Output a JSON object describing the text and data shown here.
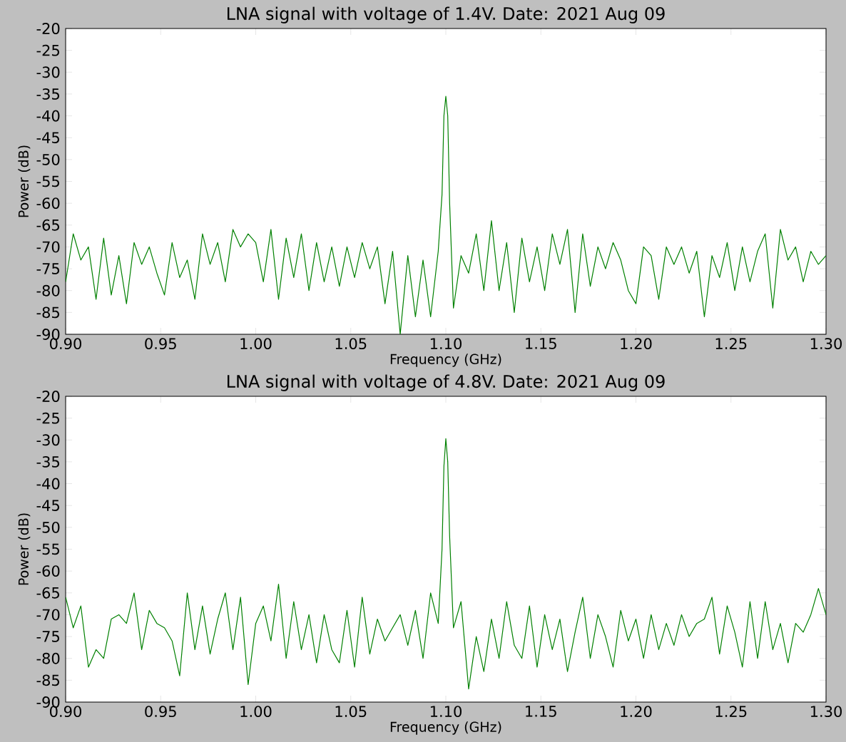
{
  "chart_data": [
    {
      "type": "line",
      "title": "LNA signal with voltage of 1.4V. Date: 2021 Aug 09",
      "xlabel": "Frequency (GHz)",
      "ylabel": "Power (dB)",
      "x": [
        0.9,
        0.904,
        0.908,
        0.912,
        0.916,
        0.92,
        0.924,
        0.928,
        0.932,
        0.936,
        0.94,
        0.944,
        0.948,
        0.952,
        0.956,
        0.96,
        0.964,
        0.968,
        0.972,
        0.976,
        0.98,
        0.984,
        0.988,
        0.992,
        0.996,
        1.0,
        1.004,
        1.008,
        1.012,
        1.016,
        1.02,
        1.024,
        1.028,
        1.032,
        1.036,
        1.04,
        1.044,
        1.048,
        1.052,
        1.056,
        1.06,
        1.064,
        1.068,
        1.072,
        1.076,
        1.08,
        1.084,
        1.088,
        1.092,
        1.096,
        1.098,
        1.099,
        1.1,
        1.101,
        1.102,
        1.104,
        1.108,
        1.112,
        1.116,
        1.12,
        1.124,
        1.128,
        1.132,
        1.136,
        1.14,
        1.144,
        1.148,
        1.152,
        1.156,
        1.16,
        1.164,
        1.168,
        1.172,
        1.176,
        1.18,
        1.184,
        1.188,
        1.192,
        1.196,
        1.2,
        1.204,
        1.208,
        1.212,
        1.216,
        1.22,
        1.224,
        1.228,
        1.232,
        1.236,
        1.24,
        1.244,
        1.248,
        1.252,
        1.256,
        1.26,
        1.264,
        1.268,
        1.272,
        1.276,
        1.28,
        1.284,
        1.288,
        1.292,
        1.296,
        1.3
      ],
      "series": [
        {
          "color": "#008000",
          "values": [
            -78,
            -67,
            -73,
            -70,
            -82,
            -68,
            -81,
            -72,
            -83,
            -69,
            -74,
            -70,
            -76,
            -81,
            -69,
            -77,
            -73,
            -82,
            -67,
            -74,
            -69,
            -78,
            -66,
            -70,
            -67,
            -69,
            -78,
            -66,
            -82,
            -68,
            -77,
            -67,
            -80,
            -69,
            -78,
            -70,
            -79,
            -70,
            -77,
            -69,
            -75,
            -70,
            -83,
            -71,
            -90,
            -72,
            -86,
            -73,
            -86,
            -71,
            -58,
            -40,
            -35.5,
            -40,
            -60,
            -84,
            -72,
            -76,
            -67,
            -80,
            -64,
            -80,
            -69,
            -85,
            -68,
            -78,
            -70,
            -80,
            -67,
            -74,
            -66,
            -85,
            -67,
            -79,
            -70,
            -75,
            -69,
            -73,
            -80,
            -83,
            -70,
            -72,
            -82,
            -70,
            -74,
            -70,
            -76,
            -71,
            -86,
            -72,
            -77,
            -69,
            -80,
            -70,
            -78,
            -71,
            -67,
            -84,
            -66,
            -73,
            -70,
            -78,
            -71,
            -74,
            -72
          ]
        }
      ],
      "xlim": [
        0.9,
        1.3
      ],
      "ylim": [
        -90,
        -20
      ],
      "xticks": [
        {
          "value": 0.9,
          "label": "0.90"
        },
        {
          "value": 0.95,
          "label": "0.95"
        },
        {
          "value": 1.0,
          "label": "1.00"
        },
        {
          "value": 1.05,
          "label": "1.05"
        },
        {
          "value": 1.1,
          "label": "1.10"
        },
        {
          "value": 1.15,
          "label": "1.15"
        },
        {
          "value": 1.2,
          "label": "1.20"
        },
        {
          "value": 1.25,
          "label": "1.25"
        },
        {
          "value": 1.3,
          "label": "1.30"
        }
      ],
      "yticks": [
        -90,
        -85,
        -80,
        -75,
        -70,
        -65,
        -60,
        -55,
        -50,
        -45,
        -40,
        -35,
        -30,
        -25,
        -20
      ]
    },
    {
      "type": "line",
      "title": "LNA signal with voltage of 4.8V. Date: 2021 Aug 09",
      "xlabel": "Frequency (GHz)",
      "ylabel": "Power (dB)",
      "x": [
        0.9,
        0.904,
        0.908,
        0.912,
        0.916,
        0.92,
        0.924,
        0.928,
        0.932,
        0.936,
        0.94,
        0.944,
        0.948,
        0.952,
        0.956,
        0.96,
        0.964,
        0.968,
        0.972,
        0.976,
        0.98,
        0.984,
        0.988,
        0.992,
        0.996,
        1.0,
        1.004,
        1.008,
        1.012,
        1.016,
        1.02,
        1.024,
        1.028,
        1.032,
        1.036,
        1.04,
        1.044,
        1.048,
        1.052,
        1.056,
        1.06,
        1.064,
        1.068,
        1.072,
        1.076,
        1.08,
        1.084,
        1.088,
        1.092,
        1.096,
        1.098,
        1.099,
        1.1,
        1.101,
        1.102,
        1.104,
        1.108,
        1.112,
        1.116,
        1.12,
        1.124,
        1.128,
        1.132,
        1.136,
        1.14,
        1.144,
        1.148,
        1.152,
        1.156,
        1.16,
        1.164,
        1.168,
        1.172,
        1.176,
        1.18,
        1.184,
        1.188,
        1.192,
        1.196,
        1.2,
        1.204,
        1.208,
        1.212,
        1.216,
        1.22,
        1.224,
        1.228,
        1.232,
        1.236,
        1.24,
        1.244,
        1.248,
        1.252,
        1.256,
        1.26,
        1.264,
        1.268,
        1.272,
        1.276,
        1.28,
        1.284,
        1.288,
        1.292,
        1.296,
        1.3
      ],
      "series": [
        {
          "color": "#008000",
          "values": [
            -66,
            -73,
            -68,
            -82,
            -78,
            -80,
            -71,
            -70,
            -72,
            -65,
            -78,
            -69,
            -72,
            -73,
            -76,
            -84,
            -65,
            -78,
            -68,
            -79,
            -71,
            -65,
            -78,
            -66,
            -86,
            -72,
            -68,
            -76,
            -63,
            -80,
            -67,
            -78,
            -70,
            -81,
            -70,
            -78,
            -81,
            -69,
            -82,
            -66,
            -79,
            -71,
            -76,
            -73,
            -70,
            -77,
            -69,
            -80,
            -65,
            -72,
            -55,
            -36,
            -29.7,
            -35,
            -52,
            -73,
            -67,
            -87,
            -75,
            -83,
            -71,
            -80,
            -67,
            -77,
            -80,
            -68,
            -82,
            -70,
            -78,
            -71,
            -83,
            -74,
            -66,
            -80,
            -70,
            -75,
            -82,
            -69,
            -76,
            -71,
            -80,
            -70,
            -78,
            -72,
            -77,
            -70,
            -75,
            -72,
            -71,
            -66,
            -79,
            -68,
            -74,
            -82,
            -67,
            -80,
            -67,
            -78,
            -72,
            -81,
            -72,
            -74,
            -70,
            -64,
            -70
          ]
        }
      ],
      "xlim": [
        0.9,
        1.3
      ],
      "ylim": [
        -90,
        -20
      ],
      "xticks": [
        {
          "value": 0.9,
          "label": "0.90"
        },
        {
          "value": 0.95,
          "label": "0.95"
        },
        {
          "value": 1.0,
          "label": "1.00"
        },
        {
          "value": 1.05,
          "label": "1.05"
        },
        {
          "value": 1.1,
          "label": "1.10"
        },
        {
          "value": 1.15,
          "label": "1.15"
        },
        {
          "value": 1.2,
          "label": "1.20"
        },
        {
          "value": 1.25,
          "label": "1.25"
        },
        {
          "value": 1.3,
          "label": "1.30"
        }
      ],
      "yticks": [
        -90,
        -85,
        -80,
        -75,
        -70,
        -65,
        -60,
        -55,
        -50,
        -45,
        -40,
        -35,
        -30,
        -25,
        -20
      ]
    }
  ]
}
